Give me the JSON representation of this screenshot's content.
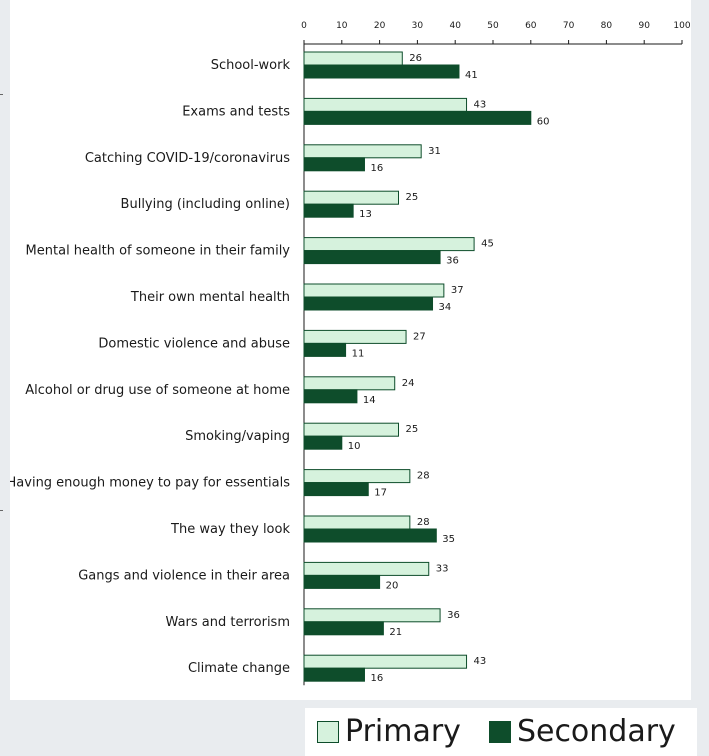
{
  "chart_data": {
    "type": "bar",
    "orientation": "horizontal",
    "xlim": [
      0,
      100
    ],
    "x_ticks": [
      0,
      10,
      20,
      30,
      40,
      50,
      60,
      70,
      80,
      90,
      100
    ],
    "categories": [
      "School-work",
      "Exams and tests",
      "Catching COVID-19/coronavirus",
      "Bullying (including online)",
      "Mental health of someone in their family",
      "Their own mental health",
      "Domestic violence and abuse",
      "Alcohol or drug use of someone at home",
      "Smoking/vaping",
      "Having enough money to pay for essentials",
      "The way they look",
      "Gangs and violence in their area",
      "Wars and terrorism",
      "Climate change"
    ],
    "series": [
      {
        "name": "Primary",
        "color": "#d6f2dd",
        "values": [
          26,
          43,
          31,
          25,
          45,
          37,
          27,
          24,
          25,
          28,
          28,
          33,
          36,
          43
        ]
      },
      {
        "name": "Secondary",
        "color": "#0e4d2b",
        "values": [
          41,
          60,
          16,
          13,
          36,
          34,
          11,
          14,
          10,
          17,
          35,
          20,
          21,
          16
        ]
      }
    ],
    "grid": false,
    "legend_position": "bottom-right"
  }
}
